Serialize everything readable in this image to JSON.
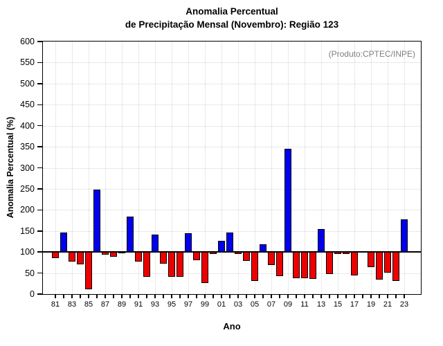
{
  "header": {
    "title_line1": "Anomalia Percentual",
    "title_line2": "de Precipitação Mensal (Novembro): Região 123"
  },
  "plot": {
    "annotation": "(Produto:CPTEC/INPE)"
  },
  "chart_data": {
    "type": "bar",
    "title": "Anomalia Percentual de Precipitação Mensal (Novembro): Região 123",
    "xlabel": "Ano",
    "ylabel": "Anomalia Percentual (%)",
    "ylim": [
      0,
      600
    ],
    "ytick_interval": 50,
    "reference_line": 100,
    "grid": true,
    "xtick_label_every": 2,
    "bar_color_above": "#0000EE",
    "bar_color_below": "#EE0000",
    "annotation_color": "#7f7f7f",
    "categories": [
      "81",
      "82",
      "83",
      "84",
      "85",
      "86",
      "87",
      "88",
      "89",
      "90",
      "91",
      "92",
      "93",
      "94",
      "95",
      "96",
      "97",
      "98",
      "99",
      "00",
      "01",
      "02",
      "03",
      "04",
      "05",
      "06",
      "07",
      "08",
      "09",
      "10",
      "11",
      "12",
      "13",
      "14",
      "15",
      "16",
      "17",
      "18",
      "19",
      "20",
      "21",
      "22",
      "23"
    ],
    "values": [
      85,
      146,
      78,
      70,
      11,
      248,
      94,
      88,
      97,
      185,
      77,
      41,
      142,
      73,
      41,
      41,
      145,
      81,
      27,
      95,
      127,
      147,
      95,
      79,
      31,
      118,
      69,
      42,
      345,
      37,
      38,
      36,
      155,
      48,
      95,
      96,
      45,
      100,
      64,
      35,
      51,
      32,
      178
    ]
  }
}
